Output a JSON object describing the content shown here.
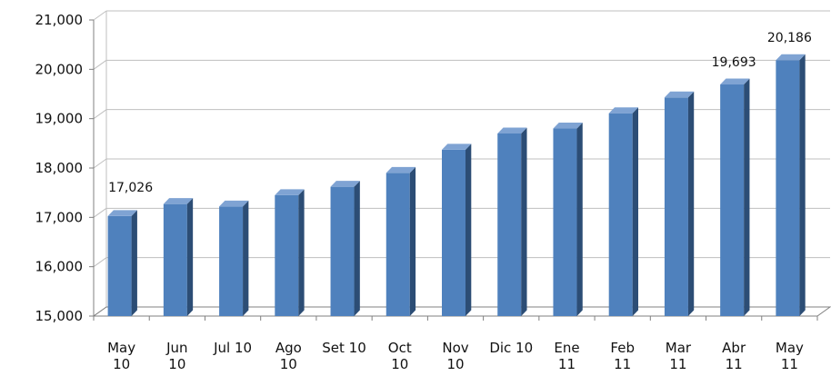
{
  "chart_data": {
    "type": "bar",
    "categories": [
      [
        "May",
        "10"
      ],
      [
        "Jun",
        "10"
      ],
      [
        "Jul 10"
      ],
      [
        "Ago",
        "10"
      ],
      [
        "Set 10"
      ],
      [
        "Oct",
        "10"
      ],
      [
        "Nov",
        "10"
      ],
      [
        "Dic 10"
      ],
      [
        "Ene",
        "11"
      ],
      [
        "Feb",
        "11"
      ],
      [
        "Mar",
        "11"
      ],
      [
        "Abr",
        "11"
      ],
      [
        "May",
        "11"
      ]
    ],
    "values": [
      17026,
      17270,
      17220,
      17450,
      17620,
      17900,
      18370,
      18700,
      18800,
      19110,
      19430,
      19693,
      20186
    ],
    "data_labels": [
      {
        "index": 0,
        "text": "17,026"
      },
      {
        "index": 11,
        "text": "19,693"
      },
      {
        "index": 12,
        "text": "20,186"
      }
    ],
    "yticks": [
      "15,000",
      "16,000",
      "17,000",
      "18,000",
      "19,000",
      "20,000",
      "21,000"
    ],
    "ylim": [
      15000,
      21000
    ],
    "grid": true,
    "bar_color": "#4F81BD",
    "bar_side_color": "#2C4D75",
    "bar_top_color": "#7FA3D3"
  }
}
